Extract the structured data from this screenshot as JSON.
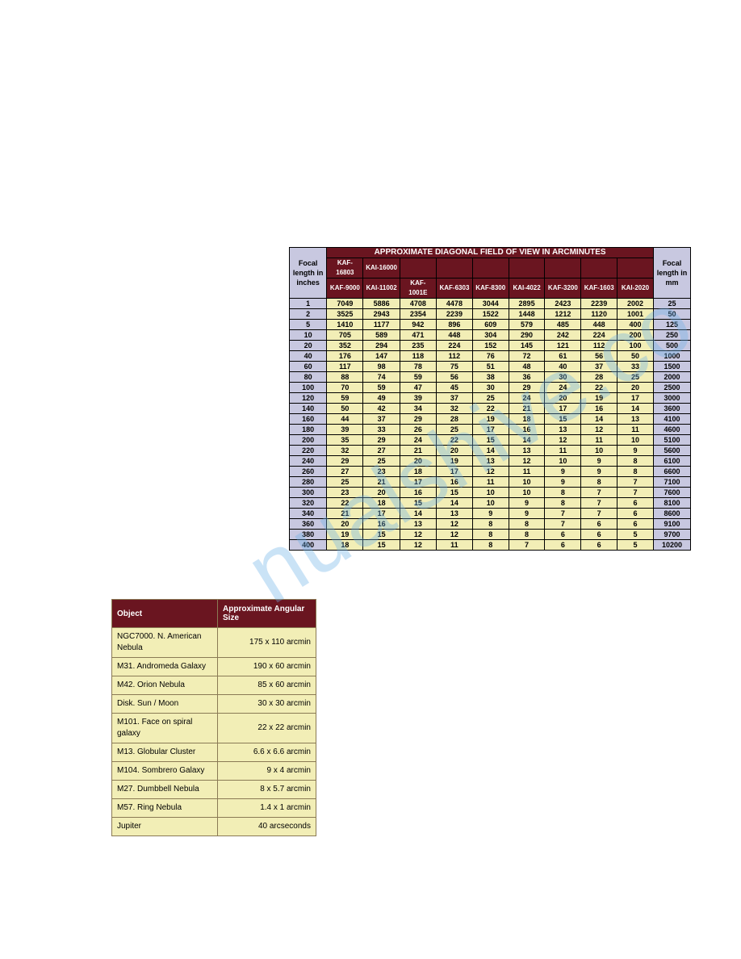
{
  "watermark": "nualshive.co",
  "fov_table": {
    "corner_left": "Focal length in inches",
    "corner_right": "Focal length in mm",
    "title": "APPROXIMATE DIAGONAL FIELD OF VIEW IN ARCMINUTES",
    "sensor_row1": [
      "KAF-16803",
      "KAI-16000",
      "",
      "",
      "",
      "",
      "",
      "",
      ""
    ],
    "sensor_row2": [
      "KAF-9000",
      "KAI-11002",
      "KAF-1001E",
      "KAF-6303",
      "KAF-8300",
      "KAI-4022",
      "KAF-3200",
      "KAF-1603",
      "KAI-2020"
    ],
    "rows": [
      {
        "in": "1",
        "v": [
          "7049",
          "5886",
          "4708",
          "4478",
          "3044",
          "2895",
          "2423",
          "2239",
          "2002"
        ],
        "mm": "25"
      },
      {
        "in": "2",
        "v": [
          "3525",
          "2943",
          "2354",
          "2239",
          "1522",
          "1448",
          "1212",
          "1120",
          "1001"
        ],
        "mm": "50"
      },
      {
        "in": "5",
        "v": [
          "1410",
          "1177",
          "942",
          "896",
          "609",
          "579",
          "485",
          "448",
          "400"
        ],
        "mm": "125"
      },
      {
        "in": "10",
        "v": [
          "705",
          "589",
          "471",
          "448",
          "304",
          "290",
          "242",
          "224",
          "200"
        ],
        "mm": "250"
      },
      {
        "in": "20",
        "v": [
          "352",
          "294",
          "235",
          "224",
          "152",
          "145",
          "121",
          "112",
          "100"
        ],
        "mm": "500"
      },
      {
        "in": "40",
        "v": [
          "176",
          "147",
          "118",
          "112",
          "76",
          "72",
          "61",
          "56",
          "50"
        ],
        "mm": "1000"
      },
      {
        "in": "60",
        "v": [
          "117",
          "98",
          "78",
          "75",
          "51",
          "48",
          "40",
          "37",
          "33"
        ],
        "mm": "1500"
      },
      {
        "in": "80",
        "v": [
          "88",
          "74",
          "59",
          "56",
          "38",
          "36",
          "30",
          "28",
          "25"
        ],
        "mm": "2000"
      },
      {
        "in": "100",
        "v": [
          "70",
          "59",
          "47",
          "45",
          "30",
          "29",
          "24",
          "22",
          "20"
        ],
        "mm": "2500"
      },
      {
        "in": "120",
        "v": [
          "59",
          "49",
          "39",
          "37",
          "25",
          "24",
          "20",
          "19",
          "17"
        ],
        "mm": "3000"
      },
      {
        "in": "140",
        "v": [
          "50",
          "42",
          "34",
          "32",
          "22",
          "21",
          "17",
          "16",
          "14"
        ],
        "mm": "3600"
      },
      {
        "in": "160",
        "v": [
          "44",
          "37",
          "29",
          "28",
          "19",
          "18",
          "15",
          "14",
          "13"
        ],
        "mm": "4100"
      },
      {
        "in": "180",
        "v": [
          "39",
          "33",
          "26",
          "25",
          "17",
          "16",
          "13",
          "12",
          "11"
        ],
        "mm": "4600"
      },
      {
        "in": "200",
        "v": [
          "35",
          "29",
          "24",
          "22",
          "15",
          "14",
          "12",
          "11",
          "10"
        ],
        "mm": "5100"
      },
      {
        "in": "220",
        "v": [
          "32",
          "27",
          "21",
          "20",
          "14",
          "13",
          "11",
          "10",
          "9"
        ],
        "mm": "5600"
      },
      {
        "in": "240",
        "v": [
          "29",
          "25",
          "20",
          "19",
          "13",
          "12",
          "10",
          "9",
          "8"
        ],
        "mm": "6100"
      },
      {
        "in": "260",
        "v": [
          "27",
          "23",
          "18",
          "17",
          "12",
          "11",
          "9",
          "9",
          "8"
        ],
        "mm": "6600"
      },
      {
        "in": "280",
        "v": [
          "25",
          "21",
          "17",
          "16",
          "11",
          "10",
          "9",
          "8",
          "7"
        ],
        "mm": "7100"
      },
      {
        "in": "300",
        "v": [
          "23",
          "20",
          "16",
          "15",
          "10",
          "10",
          "8",
          "7",
          "7"
        ],
        "mm": "7600"
      },
      {
        "in": "320",
        "v": [
          "22",
          "18",
          "15",
          "14",
          "10",
          "9",
          "8",
          "7",
          "6"
        ],
        "mm": "8100"
      },
      {
        "in": "340",
        "v": [
          "21",
          "17",
          "14",
          "13",
          "9",
          "9",
          "7",
          "7",
          "6"
        ],
        "mm": "8600"
      },
      {
        "in": "360",
        "v": [
          "20",
          "16",
          "13",
          "12",
          "8",
          "8",
          "7",
          "6",
          "6"
        ],
        "mm": "9100"
      },
      {
        "in": "380",
        "v": [
          "19",
          "15",
          "12",
          "12",
          "8",
          "8",
          "6",
          "6",
          "5"
        ],
        "mm": "9700"
      },
      {
        "in": "400",
        "v": [
          "18",
          "15",
          "12",
          "11",
          "8",
          "7",
          "6",
          "6",
          "5"
        ],
        "mm": "10200"
      }
    ]
  },
  "obj_table": {
    "col1": "Object",
    "col2": "Approximate Angular Size",
    "rows": [
      {
        "name": "NGC7000.  N. American Nebula",
        "size": "175 x 110 arcmin"
      },
      {
        "name": "M31.  Andromeda Galaxy",
        "size": "190 x 60 arcmin"
      },
      {
        "name": "M42.  Orion Nebula",
        "size": "85 x 60 arcmin"
      },
      {
        "name": "Disk.  Sun / Moon",
        "size": "30 x 30 arcmin"
      },
      {
        "name": "M101.  Face on spiral galaxy",
        "size": "22 x 22 arcmin"
      },
      {
        "name": "M13.  Globular Cluster",
        "size": "6.6 x 6.6 arcmin"
      },
      {
        "name": "M104.  Sombrero Galaxy",
        "size": "9 x 4 arcmin"
      },
      {
        "name": "M27.  Dumbbell Nebula",
        "size": "8 x 5.7 arcmin"
      },
      {
        "name": "M57.  Ring Nebula",
        "size": "1.4 x 1 arcmin"
      },
      {
        "name": "Jupiter",
        "size": "40 arcseconds"
      }
    ]
  }
}
